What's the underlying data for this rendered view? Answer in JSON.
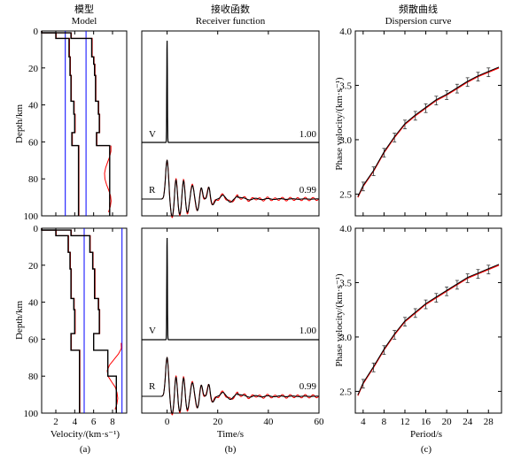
{
  "titles": {
    "a_cn": "模型",
    "a_en": "Model",
    "b_cn": "接收函数",
    "b_en": "Receiver function",
    "c_cn": "频散曲线",
    "c_en": "Dispersion curve"
  },
  "labels": {
    "depth": "Depth/km",
    "velocity": "Velocity/(km·s⁻¹)",
    "time": "Time/s",
    "phase_velocity": "Phase velocity/(km·s⁻¹)",
    "period": "Period/s",
    "panel_a": "(a)",
    "panel_b": "(b)",
    "panel_c": "(c)",
    "trace_v": "V",
    "trace_r": "R",
    "corr_v": "1.00",
    "corr_r": "0.99"
  },
  "colors": {
    "true_model": "#ff0000",
    "inverted_model": "#000000",
    "reference": "#0000ff",
    "data": "#ff0000",
    "fit": "#000000"
  },
  "chart_data": [
    {
      "type": "line",
      "panel": "a-top",
      "xlim": [
        0.5,
        9.5
      ],
      "ylim": [
        100,
        0
      ],
      "xticks": [
        "2",
        "4",
        "6",
        "8"
      ],
      "yticks": [
        "0",
        "20",
        "40",
        "60",
        "80",
        "100"
      ],
      "series": [
        {
          "id": "vp",
          "values": [
            [
              0.5,
              0
            ],
            [
              0.5,
              1
            ],
            [
              3.6,
              1
            ],
            [
              3.6,
              4
            ],
            [
              5.8,
              4
            ],
            [
              5.8,
              14
            ],
            [
              6.0,
              14
            ],
            [
              6.0,
              18
            ],
            [
              6.1,
              18
            ],
            [
              6.1,
              24
            ],
            [
              6.2,
              24
            ],
            [
              6.2,
              38
            ],
            [
              6.5,
              38
            ],
            [
              6.5,
              45
            ],
            [
              6.6,
              45
            ],
            [
              6.6,
              55
            ],
            [
              6.3,
              55
            ],
            [
              6.3,
              62
            ],
            [
              7.7,
              62
            ],
            [
              7.7,
              100
            ]
          ]
        },
        {
          "id": "vs",
          "values": [
            [
              0.5,
              0
            ],
            [
              0.5,
              1
            ],
            [
              2.0,
              1
            ],
            [
              2.0,
              4
            ],
            [
              3.4,
              4
            ],
            [
              3.4,
              14
            ],
            [
              3.5,
              14
            ],
            [
              3.5,
              24
            ],
            [
              3.6,
              24
            ],
            [
              3.6,
              38
            ],
            [
              3.9,
              38
            ],
            [
              3.9,
              45
            ],
            [
              4.0,
              45
            ],
            [
              4.0,
              55
            ],
            [
              3.7,
              55
            ],
            [
              3.7,
              62
            ],
            [
              4.4,
              62
            ],
            [
              4.4,
              100
            ]
          ]
        },
        {
          "id": "true",
          "values": [
            [
              0.5,
              0
            ],
            [
              0.5,
              1
            ],
            [
              2.0,
              1
            ],
            [
              2.0,
              4
            ],
            [
              3.4,
              4
            ],
            [
              3.5,
              20
            ],
            [
              3.6,
              38
            ],
            [
              4.0,
              45
            ],
            [
              3.7,
              60
            ],
            [
              4.4,
              62
            ],
            [
              4.4,
              100
            ]
          ]
        },
        {
          "id": "ref_vs",
          "values": [
            [
              3.0,
              0
            ],
            [
              3.0,
              100
            ]
          ]
        },
        {
          "id": "ref_vp",
          "values": [
            [
              5.2,
              0
            ],
            [
              5.2,
              100
            ]
          ]
        }
      ]
    },
    {
      "type": "line",
      "panel": "a-bottom",
      "xlim": [
        0.5,
        9.5
      ],
      "ylim": [
        100,
        0
      ],
      "xticks": [
        "2",
        "4",
        "6",
        "8"
      ],
      "yticks": [
        "0",
        "20",
        "40",
        "60",
        "80",
        "100"
      ],
      "series": [
        {
          "id": "vp",
          "values": [
            [
              0.5,
              0
            ],
            [
              0.5,
              1
            ],
            [
              3.6,
              1
            ],
            [
              3.6,
              4
            ],
            [
              5.6,
              4
            ],
            [
              5.6,
              13
            ],
            [
              5.9,
              13
            ],
            [
              5.9,
              22
            ],
            [
              6.1,
              22
            ],
            [
              6.1,
              38
            ],
            [
              6.5,
              38
            ],
            [
              6.5,
              44
            ],
            [
              6.6,
              44
            ],
            [
              6.6,
              57
            ],
            [
              6.0,
              57
            ],
            [
              6.0,
              66
            ],
            [
              7.5,
              66
            ],
            [
              7.5,
              80
            ],
            [
              8.4,
              80
            ],
            [
              8.4,
              100
            ]
          ]
        },
        {
          "id": "vs",
          "values": [
            [
              0.5,
              0
            ],
            [
              0.5,
              1
            ],
            [
              2.0,
              1
            ],
            [
              2.0,
              4
            ],
            [
              3.3,
              4
            ],
            [
              3.3,
              13
            ],
            [
              3.5,
              13
            ],
            [
              3.5,
              22
            ],
            [
              3.6,
              22
            ],
            [
              3.6,
              38
            ],
            [
              3.9,
              38
            ],
            [
              3.9,
              44
            ],
            [
              4.0,
              44
            ],
            [
              4.0,
              57
            ],
            [
              3.6,
              57
            ],
            [
              3.6,
              66
            ],
            [
              4.5,
              66
            ],
            [
              4.5,
              100
            ]
          ]
        },
        {
          "id": "ref_vs",
          "values": [
            [
              5.0,
              0
            ],
            [
              5.0,
              100
            ]
          ]
        },
        {
          "id": "ref_vp",
          "values": [
            [
              9.0,
              0
            ],
            [
              9.0,
              100
            ]
          ]
        }
      ]
    },
    {
      "type": "line",
      "panel": "b",
      "xlim": [
        -10,
        60
      ],
      "xticks": [
        "0",
        "20",
        "40",
        "60"
      ],
      "series": [
        {
          "name": "V",
          "correlation": "1.00"
        },
        {
          "name": "R",
          "correlation": "0.99"
        }
      ]
    },
    {
      "type": "scatter",
      "panel": "c-top",
      "xlim": [
        2.5,
        30.5
      ],
      "ylim": [
        2.3,
        4.0
      ],
      "xticks": [
        "4",
        "8",
        "12",
        "16",
        "20",
        "24",
        "28"
      ],
      "yticks": [
        "2.5",
        "3.0",
        "3.5",
        "4.0"
      ],
      "x": [
        3,
        4,
        6,
        8,
        10,
        12,
        14,
        16,
        18,
        20,
        22,
        24,
        26,
        28,
        30
      ],
      "values": [
        2.47,
        2.57,
        2.71,
        2.88,
        3.02,
        3.14,
        3.22,
        3.29,
        3.36,
        3.41,
        3.47,
        3.53,
        3.58,
        3.62,
        3.66
      ]
    },
    {
      "type": "scatter",
      "panel": "c-bottom",
      "xlim": [
        2.5,
        30.5
      ],
      "ylim": [
        2.3,
        4.0
      ],
      "xticks": [
        "4",
        "8",
        "12",
        "16",
        "20",
        "24",
        "28"
      ],
      "yticks": [
        "2.5",
        "3.0",
        "3.5",
        "4.0"
      ],
      "x": [
        3,
        4,
        6,
        8,
        10,
        12,
        14,
        16,
        18,
        20,
        22,
        24,
        26,
        28,
        30
      ],
      "values": [
        2.46,
        2.57,
        2.72,
        2.88,
        3.02,
        3.14,
        3.22,
        3.3,
        3.36,
        3.42,
        3.48,
        3.54,
        3.58,
        3.62,
        3.66
      ]
    }
  ]
}
